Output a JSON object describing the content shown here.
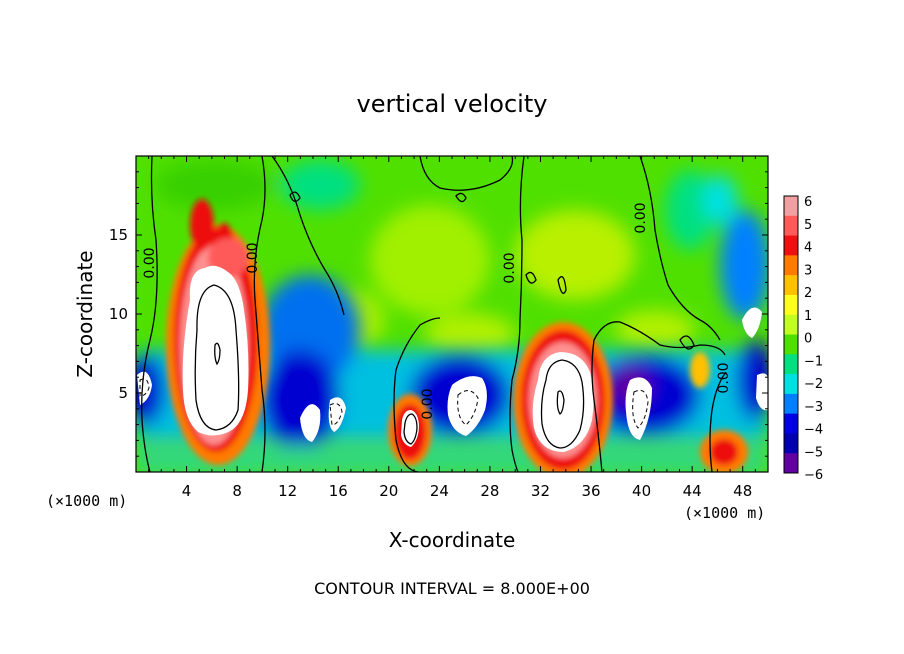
{
  "chart_data": {
    "type": "heatmap",
    "title": "vertical velocity",
    "xlabel": "X-coordinate",
    "ylabel": "Z-coordinate",
    "x_unit": "(×1000 m)",
    "y_unit": "(×1000 m)",
    "xlim": [
      0,
      50
    ],
    "ylim": [
      0,
      20
    ],
    "x_ticks": [
      4,
      8,
      12,
      16,
      20,
      24,
      28,
      32,
      36,
      40,
      44,
      48
    ],
    "y_ticks": [
      5,
      10,
      15
    ],
    "colorbar": {
      "levels": [
        6,
        5,
        4,
        3,
        2,
        1,
        0,
        -1,
        -2,
        -3,
        -4,
        -5,
        -6
      ],
      "colors": [
        "#f0a0a0",
        "#ff5a5a",
        "#ee1010",
        "#ff7a00",
        "#ffc000",
        "#ffff20",
        "#c0ff20",
        "#50e000",
        "#00e080",
        "#00e0e0",
        "#0080ff",
        "#0000e0",
        "#0000b0",
        "#6000a0"
      ]
    },
    "cells": [
      {
        "x": [
          4,
          8
        ],
        "z": [
          1,
          17
        ],
        "value": 7
      },
      {
        "x": [
          20,
          24
        ],
        "z": [
          0.5,
          4.5
        ],
        "value": 6
      },
      {
        "x": [
          30,
          36
        ],
        "z": [
          0.5,
          9
        ],
        "value": 7
      },
      {
        "x": [
          45,
          48
        ],
        "z": [
          0.3,
          2.5
        ],
        "value": 4
      },
      {
        "x": [
          10,
          18
        ],
        "z": [
          2,
          8
        ],
        "value": -6
      },
      {
        "x": [
          22,
          28
        ],
        "z": [
          1.5,
          6
        ],
        "value": -6
      },
      {
        "x": [
          37,
          42
        ],
        "z": [
          2,
          7
        ],
        "value": -6
      },
      {
        "x": [
          0,
          2
        ],
        "z": [
          3.5,
          7
        ],
        "value": -6
      },
      {
        "x": [
          49,
          50
        ],
        "z": [
          3.5,
          8
        ],
        "value": -6
      }
    ],
    "contour_labels": [
      "0.00",
      "0.00",
      "0.00",
      "0.00",
      "0.00",
      "0.00"
    ],
    "contour_interval": "CONTOUR INTERVAL = 8.000E+00"
  }
}
